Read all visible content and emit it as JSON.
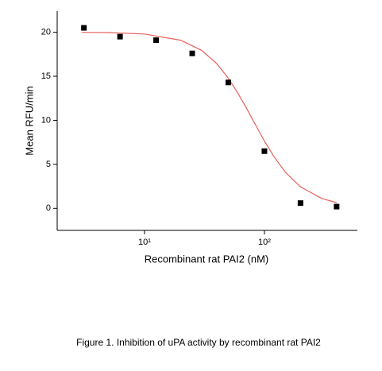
{
  "chart_data": {
    "type": "scatter",
    "x_label": "Recombinant rat PAI2 (nM)",
    "y_label": "Mean RFU/min",
    "caption": "Figure 1. Inhibition of uPA activity by recombinant rat PAI2",
    "x": [
      3.125,
      6.25,
      12.5,
      25,
      50,
      100,
      200,
      400
    ],
    "values": [
      20.5,
      19.5,
      19.1,
      17.6,
      14.3,
      6.5,
      0.6,
      0.2
    ],
    "color": "#000000",
    "fit": {
      "color": "#e8605a",
      "x": [
        3,
        5,
        10,
        20,
        30,
        40,
        50,
        60,
        70,
        80,
        100,
        120,
        150,
        200,
        300,
        400
      ],
      "values": [
        19.99,
        19.96,
        19.8,
        19.1,
        17.94,
        16.44,
        14.78,
        13.1,
        11.5,
        10.05,
        7.65,
        5.88,
        4.09,
        2.44,
        1.13,
        0.66
      ]
    },
    "xlog": true,
    "xlim": [
      1.87,
      596
    ],
    "ylim": [
      -2.5,
      22.4
    ],
    "xticks": [
      {
        "value": 10,
        "label": "10¹"
      },
      {
        "value": 100,
        "label": "10²"
      }
    ],
    "yticks": [
      0,
      5,
      10,
      15,
      20
    ]
  }
}
